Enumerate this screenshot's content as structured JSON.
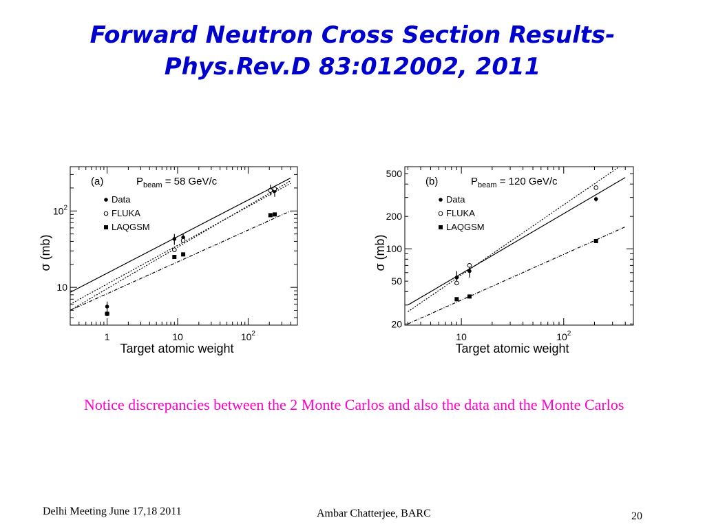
{
  "slide": {
    "title_line1": "Forward Neutron Cross Section Results-",
    "title_line2": "Phys.Rev.D 83:012002, 2011",
    "note": "Notice discrepancies between the 2 Monte Carlos and also the data and the Monte Carlos",
    "footer_left": "Delhi Meeting June 17,18 2011",
    "footer_center": "Ambar Chatterjee, BARC",
    "page_number": "20",
    "title_color": "#0000cc",
    "note_color": "#ff00cc"
  },
  "chart_data": [
    {
      "type": "scatter",
      "panel": "(a)",
      "beam_label": "P",
      "beam_sub": "beam",
      "beam_value": " = 58 GeV/c",
      "xlabel": "Target atomic weight",
      "ylabel": "σ  (mb)",
      "xscale": "log",
      "yscale": "log",
      "xlim": [
        0.3,
        500
      ],
      "ylim": [
        3.2,
        380
      ],
      "xticks": [
        {
          "v": 1,
          "t": "1"
        },
        {
          "v": 10,
          "t": "10"
        },
        {
          "v": 100,
          "t": "10",
          "sup": "2"
        }
      ],
      "yticks": [
        {
          "v": 10,
          "t": "10"
        },
        {
          "v": 100,
          "t": "10",
          "sup": "2"
        }
      ],
      "legend_position": "top-left",
      "series": [
        {
          "name": "Data",
          "marker": "filled-circle",
          "points": [
            {
              "x": 1,
              "y": 5.6,
              "err": 0.9
            },
            {
              "x": 9,
              "y": 43,
              "err": 7
            },
            {
              "x": 12,
              "y": 45,
              "err": 6
            },
            {
              "x": 207,
              "y": 190,
              "err": 30
            },
            {
              "x": 238,
              "y": 183,
              "err": 30
            }
          ]
        },
        {
          "name": "FLUKA",
          "marker": "open-circle",
          "points": [
            {
              "x": 1,
              "y": 4.5
            },
            {
              "x": 9,
              "y": 31
            },
            {
              "x": 12,
              "y": 41
            },
            {
              "x": 207,
              "y": 185
            },
            {
              "x": 238,
              "y": 195
            }
          ]
        },
        {
          "name": "LAQGSM",
          "marker": "filled-square",
          "points": [
            {
              "x": 1,
              "y": 4.5
            },
            {
              "x": 9,
              "y": 25
            },
            {
              "x": 12,
              "y": 27
            },
            {
              "x": 207,
              "y": 88
            },
            {
              "x": 238,
              "y": 90
            }
          ]
        }
      ],
      "fits": [
        {
          "style": "solid",
          "from": [
            0.3,
            8.6
          ],
          "to": [
            400,
            270
          ]
        },
        {
          "style": "dotted",
          "from": [
            0.3,
            5.0
          ],
          "to": [
            400,
            248
          ]
        },
        {
          "style": "dotted",
          "from": [
            0.3,
            6.0
          ],
          "to": [
            400,
            230
          ]
        },
        {
          "style": "dashdot",
          "from": [
            0.3,
            5.0
          ],
          "to": [
            400,
            100
          ]
        }
      ]
    },
    {
      "type": "scatter",
      "panel": "(b)",
      "beam_label": "P",
      "beam_sub": "beam",
      "beam_value": " = 120 GeV/c",
      "xlabel": "Target atomic weight",
      "ylabel": "σ  (mb)",
      "xscale": "log",
      "yscale": "log",
      "xlim": [
        2.8,
        480
      ],
      "ylim": [
        19.5,
        580
      ],
      "xticks": [
        {
          "v": 10,
          "t": "10"
        },
        {
          "v": 100,
          "t": "10",
          "sup": "2"
        }
      ],
      "yticks": [
        {
          "v": 20,
          "t": "20"
        },
        {
          "v": 50,
          "t": "50"
        },
        {
          "v": 100,
          "t": "100"
        },
        {
          "v": 200,
          "t": "200"
        },
        {
          "v": 500,
          "t": "500"
        }
      ],
      "legend_position": "top-left",
      "series": [
        {
          "name": "Data",
          "marker": "filled-circle",
          "points": [
            {
              "x": 9,
              "y": 54,
              "err": 8
            },
            {
              "x": 12,
              "y": 62,
              "err": 8
            },
            {
              "x": 207,
              "y": 290,
              "err": 15
            }
          ]
        },
        {
          "name": "FLUKA",
          "marker": "open-circle",
          "points": [
            {
              "x": 9,
              "y": 48
            },
            {
              "x": 12,
              "y": 70
            },
            {
              "x": 207,
              "y": 370
            }
          ]
        },
        {
          "name": "LAQGSM",
          "marker": "filled-square",
          "points": [
            {
              "x": 9,
              "y": 34
            },
            {
              "x": 12,
              "y": 36
            },
            {
              "x": 207,
              "y": 118
            }
          ]
        }
      ],
      "fits": [
        {
          "style": "solid",
          "from": [
            3,
            30
          ],
          "to": [
            400,
            460
          ]
        },
        {
          "style": "dotted",
          "from": [
            3,
            26
          ],
          "to": [
            350,
            580
          ]
        },
        {
          "style": "dashdot",
          "from": [
            3,
            20
          ],
          "to": [
            400,
            160
          ]
        }
      ]
    }
  ]
}
